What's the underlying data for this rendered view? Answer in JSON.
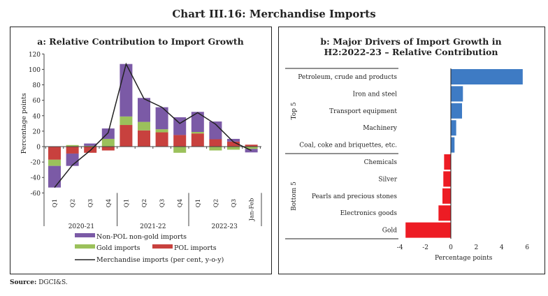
{
  "title": "Chart III.16: Merchandise Imports",
  "source_label": "Source:",
  "source": "DGCI&S.",
  "chart_data": [
    {
      "type": "bar",
      "stacked": true,
      "title": "a: Relative Contribution to Import Growth",
      "ylabel": "Percentage points",
      "ylim": [
        -60,
        120
      ],
      "yticks": [
        -60,
        -40,
        -20,
        0,
        20,
        40,
        60,
        80,
        100,
        120
      ],
      "categories": [
        "Q1",
        "Q2",
        "Q3",
        "Q4",
        "Q1",
        "Q2",
        "Q3",
        "Q4",
        "Q1",
        "Q2",
        "Q3",
        "Jan-Feb"
      ],
      "groups": [
        {
          "label": "2020-21",
          "count": 4
        },
        {
          "label": "2021-22",
          "count": 4
        },
        {
          "label": "2022-23",
          "count": 4
        }
      ],
      "series": [
        {
          "name": "POL imports",
          "kind": "bar",
          "color": "#c8413e",
          "values": [
            -17,
            -9,
            -8,
            -5,
            28,
            21,
            18.5,
            15,
            17,
            9.5,
            6.5,
            2.5
          ]
        },
        {
          "name": "Gold imports",
          "kind": "bar",
          "color": "#9bc15b",
          "values": [
            -8,
            2,
            1,
            10,
            11,
            11,
            4,
            -8,
            2,
            -5,
            -4,
            -3
          ]
        },
        {
          "name": "Non-POL non-gold imports",
          "kind": "bar",
          "color": "#7b5aa6",
          "values": [
            -28,
            -16,
            3,
            13.5,
            68,
            31,
            28.5,
            23,
            26,
            23,
            3.5,
            -4.5
          ]
        },
        {
          "name": "Merchandise imports (per cent, y-o-y)",
          "kind": "line",
          "color": "#222222",
          "values": [
            -53,
            -24,
            -5,
            18,
            107,
            62,
            51,
            30,
            44,
            29,
            6,
            -5
          ]
        }
      ],
      "legend": "bottom"
    },
    {
      "type": "bar",
      "orientation": "horizontal",
      "title": "b: Major Drivers of Import Growth in H2:2022-23 – Relative Contribution",
      "title_lines": [
        "b: Major Drivers of Import Growth in",
        "H2:2022-23 – Relative Contribution"
      ],
      "xlabel": "Percentage points",
      "xlim": [
        -4,
        6
      ],
      "xticks": [
        -4,
        -2,
        0,
        2,
        4,
        6
      ],
      "groups": [
        {
          "label": "Top 5",
          "count": 5
        },
        {
          "label": "Bottom 5",
          "count": 5
        }
      ],
      "categories": [
        "Petroleum, crude and products",
        "Iron and steel",
        "Transport equipment",
        "Machinery",
        "Coal, coke and briquettes, etc.",
        "Chemicals",
        "Silver",
        "Pearls and precious stones",
        "Electronics goods",
        "Gold"
      ],
      "values": [
        5.65,
        0.95,
        0.88,
        0.42,
        0.29,
        -0.53,
        -0.59,
        -0.66,
        -0.97,
        -3.56
      ],
      "colors": {
        "positive": "#3e7bc4",
        "negative": "#ed1c24"
      }
    }
  ]
}
